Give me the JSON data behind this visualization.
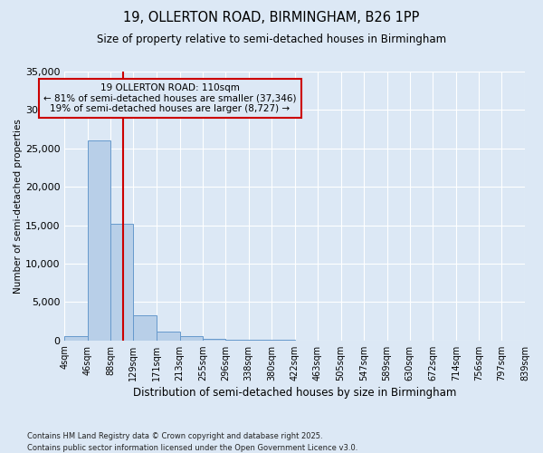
{
  "title_line1": "19, OLLERTON ROAD, BIRMINGHAM, B26 1PP",
  "title_line2": "Size of property relative to semi-detached houses in Birmingham",
  "xlabel": "Distribution of semi-detached houses by size in Birmingham",
  "ylabel": "Number of semi-detached properties",
  "footnote1": "Contains HM Land Registry data © Crown copyright and database right 2025.",
  "footnote2": "Contains public sector information licensed under the Open Government Licence v3.0.",
  "annotation_line1": "19 OLLERTON ROAD: 110sqm",
  "annotation_line2": "← 81% of semi-detached houses are smaller (37,346)",
  "annotation_line3": "19% of semi-detached houses are larger (8,727) →",
  "property_size": 110,
  "bin_edges": [
    4,
    46,
    88,
    129,
    171,
    213,
    255,
    296,
    338,
    380,
    422,
    463,
    505,
    547,
    589,
    630,
    672,
    714,
    756,
    797,
    839
  ],
  "bin_counts": [
    500,
    26000,
    15200,
    3300,
    1100,
    500,
    200,
    100,
    50,
    30,
    20,
    10,
    5,
    5,
    0,
    0,
    0,
    0,
    0,
    0
  ],
  "bar_color": "#b8cfe8",
  "bar_edge_color": "#6699cc",
  "vline_color": "#cc0000",
  "annotation_box_color": "#cc0000",
  "background_color": "#dce8f5",
  "ylim": [
    0,
    35000
  ],
  "yticks": [
    0,
    5000,
    10000,
    15000,
    20000,
    25000,
    30000,
    35000
  ]
}
